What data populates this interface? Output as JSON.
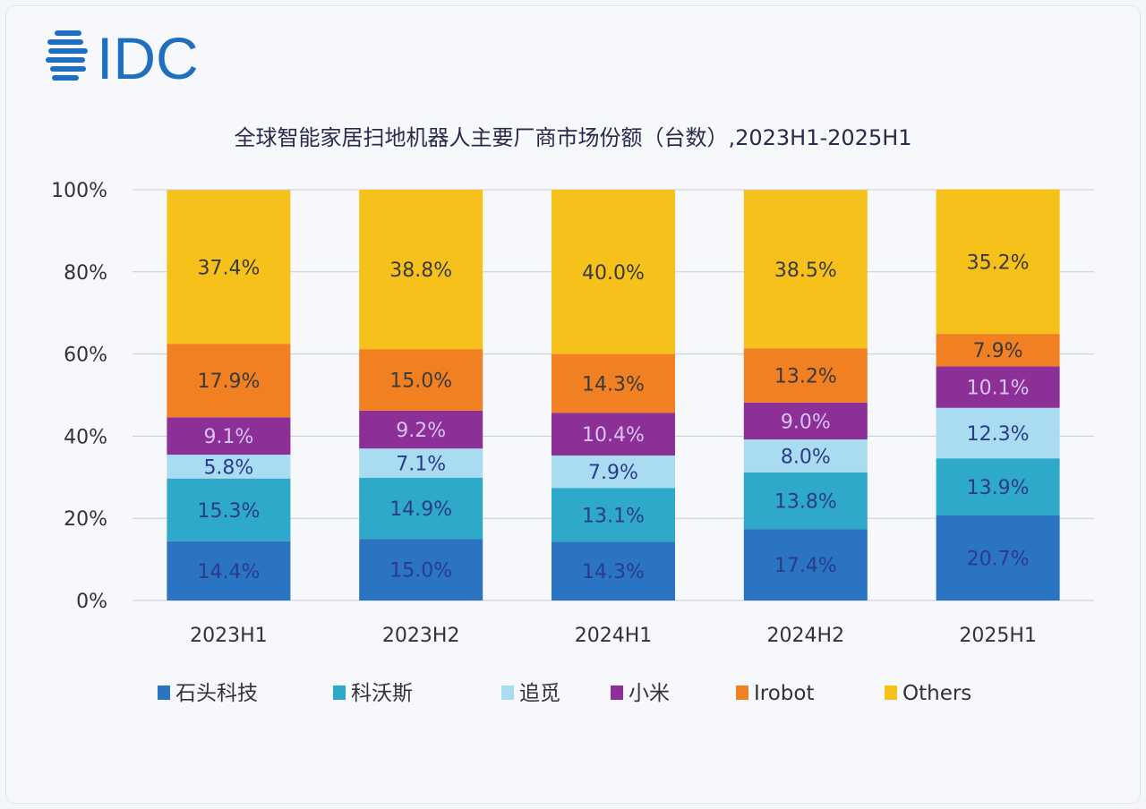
{
  "logo": {
    "text": "IDC",
    "color": "#1f6fc0"
  },
  "chart_data": {
    "type": "bar",
    "stacked": true,
    "title": "全球智能家居扫地机器人主要厂商市场份额（台数）,2023H1-2025H1",
    "categories": [
      "2023H1",
      "2023H2",
      "2024H1",
      "2024H2",
      "2025H1"
    ],
    "ylim": [
      0,
      100
    ],
    "yticks": [
      "0%",
      "20%",
      "40%",
      "60%",
      "80%",
      "100%"
    ],
    "grid": true,
    "legend_position": "bottom",
    "series": [
      {
        "name": "石头科技",
        "color": "#2b74c1",
        "label_color": "#2b3b8c",
        "values": [
          14.4,
          15.0,
          14.3,
          17.4,
          20.7
        ],
        "labels": [
          "14.4%",
          "15.0%",
          "14.3%",
          "17.4%",
          "20.7%"
        ]
      },
      {
        "name": "科沃斯",
        "color": "#2fa9c9",
        "label_color": "#2b3b8c",
        "values": [
          15.3,
          14.9,
          13.1,
          13.8,
          13.9
        ],
        "labels": [
          "15.3%",
          "14.9%",
          "13.1%",
          "13.8%",
          "13.9%"
        ]
      },
      {
        "name": "追觅",
        "color": "#a9dbf1",
        "label_color": "#2b3b8c",
        "values": [
          5.8,
          7.1,
          7.9,
          8.0,
          12.3
        ],
        "labels": [
          "5.8%",
          "7.1%",
          "7.9%",
          "8.0%",
          "12.3%"
        ]
      },
      {
        "name": "小米",
        "color": "#8c2f97",
        "label_color": "#d7c3f0",
        "values": [
          9.1,
          9.2,
          10.4,
          9.0,
          10.1
        ],
        "labels": [
          "9.1%",
          "9.2%",
          "10.4%",
          "9.0%",
          "10.1%"
        ]
      },
      {
        "name": "Irobot",
        "color": "#f18023",
        "label_color": "#3a3a3a",
        "values": [
          17.9,
          15.0,
          14.3,
          13.2,
          7.9
        ],
        "labels": [
          "17.9%",
          "15.0%",
          "14.3%",
          "13.2%",
          "7.9%"
        ]
      },
      {
        "name": "Others",
        "color": "#f6c11b",
        "label_color": "#3a3a3a",
        "values": [
          37.4,
          38.8,
          40.0,
          38.5,
          35.2
        ],
        "labels": [
          "37.4%",
          "38.8%",
          "40.0%",
          "38.5%",
          "35.2%"
        ]
      }
    ]
  }
}
